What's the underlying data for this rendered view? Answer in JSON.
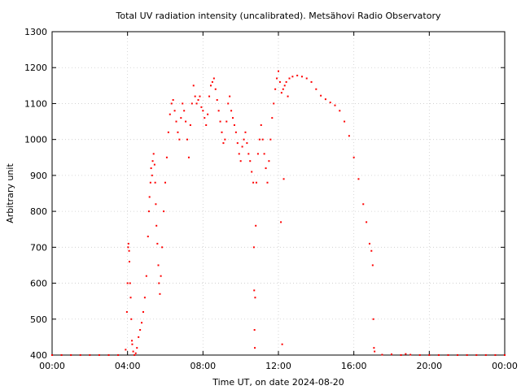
{
  "chart_data": {
    "type": "scatter",
    "title": "Total UV radiation intensity (uncalibrated). Metsähovi Radio Observatory",
    "xlabel": "Time UT, on date 2024-08-20",
    "ylabel": "Arbitrary unit",
    "xlim": [
      "00:00",
      "24:00"
    ],
    "ylim": [
      400,
      1300
    ],
    "x_ticks": [
      "00:00",
      "04:00",
      "08:00",
      "12:00",
      "16:00",
      "20:00",
      "00:00"
    ],
    "y_ticks": [
      "400",
      "500",
      "600",
      "700",
      "800",
      "900",
      "1000",
      "1100",
      "1200",
      "1300"
    ],
    "grid": true,
    "marker_color": "#ff0000",
    "series": [
      {
        "points": [
          [
            "00:00",
            400
          ],
          [
            "00:30",
            400
          ],
          [
            "01:00",
            400
          ],
          [
            "01:30",
            400
          ],
          [
            "02:00",
            400
          ],
          [
            "02:30",
            400
          ],
          [
            "03:00",
            400
          ],
          [
            "03:30",
            400
          ],
          [
            "03:54",
            415
          ],
          [
            "03:58",
            520
          ],
          [
            "04:00",
            600
          ],
          [
            "04:02",
            700
          ],
          [
            "04:03",
            710
          ],
          [
            "04:05",
            690
          ],
          [
            "04:06",
            660
          ],
          [
            "04:08",
            600
          ],
          [
            "04:10",
            560
          ],
          [
            "04:12",
            500
          ],
          [
            "04:14",
            440
          ],
          [
            "04:15",
            430
          ],
          [
            "04:18",
            410
          ],
          [
            "04:22",
            400
          ],
          [
            "04:26",
            405
          ],
          [
            "04:30",
            420
          ],
          [
            "04:35",
            450
          ],
          [
            "04:40",
            470
          ],
          [
            "04:45",
            490
          ],
          [
            "04:50",
            520
          ],
          [
            "04:55",
            560
          ],
          [
            "05:00",
            620
          ],
          [
            "05:05",
            730
          ],
          [
            "05:08",
            800
          ],
          [
            "05:10",
            840
          ],
          [
            "05:13",
            880
          ],
          [
            "05:15",
            920
          ],
          [
            "05:18",
            900
          ],
          [
            "05:20",
            940
          ],
          [
            "05:23",
            960
          ],
          [
            "05:26",
            930
          ],
          [
            "05:28",
            880
          ],
          [
            "05:30",
            820
          ],
          [
            "05:32",
            760
          ],
          [
            "05:35",
            710
          ],
          [
            "05:38",
            650
          ],
          [
            "05:40",
            600
          ],
          [
            "05:43",
            570
          ],
          [
            "05:46",
            620
          ],
          [
            "05:50",
            700
          ],
          [
            "05:55",
            800
          ],
          [
            "06:00",
            880
          ],
          [
            "06:05",
            950
          ],
          [
            "06:10",
            1020
          ],
          [
            "06:15",
            1070
          ],
          [
            "06:20",
            1100
          ],
          [
            "06:25",
            1110
          ],
          [
            "06:30",
            1080
          ],
          [
            "06:35",
            1050
          ],
          [
            "06:40",
            1020
          ],
          [
            "06:45",
            1000
          ],
          [
            "06:50",
            1060
          ],
          [
            "06:55",
            1100
          ],
          [
            "07:00",
            1080
          ],
          [
            "07:05",
            1050
          ],
          [
            "07:10",
            1000
          ],
          [
            "07:15",
            950
          ],
          [
            "07:20",
            1040
          ],
          [
            "07:25",
            1100
          ],
          [
            "07:30",
            1150
          ],
          [
            "07:35",
            1120
          ],
          [
            "07:40",
            1100
          ],
          [
            "07:45",
            1110
          ],
          [
            "07:50",
            1120
          ],
          [
            "07:55",
            1090
          ],
          [
            "08:00",
            1080
          ],
          [
            "08:05",
            1060
          ],
          [
            "08:10",
            1040
          ],
          [
            "08:15",
            1070
          ],
          [
            "08:20",
            1120
          ],
          [
            "08:25",
            1150
          ],
          [
            "08:30",
            1160
          ],
          [
            "08:35",
            1170
          ],
          [
            "08:40",
            1140
          ],
          [
            "08:45",
            1110
          ],
          [
            "08:50",
            1080
          ],
          [
            "08:55",
            1050
          ],
          [
            "09:00",
            1020
          ],
          [
            "09:05",
            990
          ],
          [
            "09:10",
            1000
          ],
          [
            "09:15",
            1050
          ],
          [
            "09:20",
            1100
          ],
          [
            "09:25",
            1120
          ],
          [
            "09:30",
            1080
          ],
          [
            "09:35",
            1060
          ],
          [
            "09:40",
            1040
          ],
          [
            "09:45",
            1020
          ],
          [
            "09:50",
            990
          ],
          [
            "09:55",
            960
          ],
          [
            "10:00",
            940
          ],
          [
            "10:05",
            980
          ],
          [
            "10:10",
            1000
          ],
          [
            "10:15",
            1020
          ],
          [
            "10:20",
            990
          ],
          [
            "10:25",
            960
          ],
          [
            "10:30",
            940
          ],
          [
            "10:35",
            910
          ],
          [
            "10:40",
            880
          ],
          [
            "10:42",
            700
          ],
          [
            "10:43",
            580
          ],
          [
            "10:44",
            470
          ],
          [
            "10:45",
            420
          ],
          [
            "10:46",
            560
          ],
          [
            "10:48",
            760
          ],
          [
            "10:50",
            880
          ],
          [
            "10:55",
            960
          ],
          [
            "11:00",
            1000
          ],
          [
            "11:05",
            1040
          ],
          [
            "11:10",
            1000
          ],
          [
            "11:15",
            960
          ],
          [
            "11:20",
            920
          ],
          [
            "11:25",
            880
          ],
          [
            "11:30",
            940
          ],
          [
            "11:35",
            1000
          ],
          [
            "11:40",
            1060
          ],
          [
            "11:45",
            1100
          ],
          [
            "11:50",
            1140
          ],
          [
            "11:55",
            1170
          ],
          [
            "12:00",
            1190
          ],
          [
            "12:05",
            1160
          ],
          [
            "12:08",
            770
          ],
          [
            "12:10",
            1130
          ],
          [
            "12:12",
            430
          ],
          [
            "12:15",
            1140
          ],
          [
            "12:17",
            890
          ],
          [
            "12:20",
            1150
          ],
          [
            "12:25",
            1160
          ],
          [
            "12:30",
            1120
          ],
          [
            "12:35",
            1170
          ],
          [
            "12:45",
            1175
          ],
          [
            "13:00",
            1178
          ],
          [
            "13:15",
            1175
          ],
          [
            "13:30",
            1170
          ],
          [
            "13:45",
            1160
          ],
          [
            "14:00",
            1140
          ],
          [
            "14:15",
            1122
          ],
          [
            "14:30",
            1112
          ],
          [
            "14:45",
            1103
          ],
          [
            "15:00",
            1095
          ],
          [
            "15:15",
            1080
          ],
          [
            "15:30",
            1050
          ],
          [
            "15:45",
            1010
          ],
          [
            "16:00",
            950
          ],
          [
            "16:15",
            890
          ],
          [
            "16:30",
            820
          ],
          [
            "16:40",
            770
          ],
          [
            "16:50",
            710
          ],
          [
            "16:56",
            690
          ],
          [
            "17:00",
            650
          ],
          [
            "17:02",
            500
          ],
          [
            "17:04",
            420
          ],
          [
            "17:06",
            410
          ],
          [
            "17:30",
            401
          ],
          [
            "18:00",
            402
          ],
          [
            "18:30",
            400
          ],
          [
            "18:45",
            403
          ],
          [
            "19:00",
            401
          ],
          [
            "19:30",
            400
          ],
          [
            "20:00",
            400
          ],
          [
            "20:30",
            400
          ],
          [
            "21:00",
            400
          ],
          [
            "21:30",
            400
          ],
          [
            "22:00",
            400
          ],
          [
            "22:30",
            400
          ],
          [
            "23:00",
            400
          ],
          [
            "23:30",
            400
          ],
          [
            "24:00",
            400
          ]
        ]
      }
    ]
  }
}
